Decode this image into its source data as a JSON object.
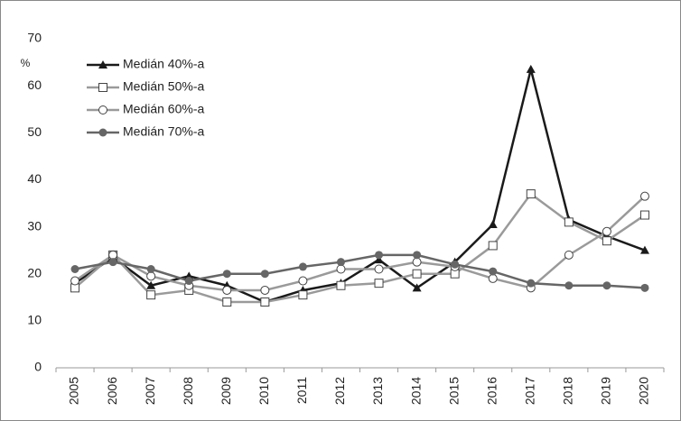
{
  "chart_data": {
    "type": "line",
    "y_unit": "%",
    "categories": [
      "2005",
      "2006",
      "2007",
      "2008",
      "2009",
      "2010",
      "2011",
      "2012",
      "2013",
      "2014",
      "2015",
      "2016",
      "2017",
      "2018",
      "2019",
      "2020"
    ],
    "series": [
      {
        "name": "Medián 40%-a",
        "color": "#1a1a1a",
        "marker": "triangle",
        "values": [
          18,
          23.5,
          17.5,
          19.5,
          17.5,
          14,
          16.5,
          18,
          23,
          17,
          22.5,
          30.5,
          63.5,
          31.5,
          28,
          25
        ]
      },
      {
        "name": "Medián 50%-a",
        "color": "#9a9a9a",
        "marker": "square",
        "values": [
          17,
          24,
          15.5,
          16.5,
          14,
          14,
          15.5,
          17.5,
          18,
          20,
          20,
          26,
          37,
          31,
          27,
          32.5
        ]
      },
      {
        "name": "Medián 60%-a",
        "color": "#9a9a9a",
        "marker": "circle-open",
        "values": [
          18.5,
          24,
          19.5,
          17.5,
          16.5,
          16.5,
          18.5,
          21,
          21,
          22.5,
          21.5,
          19,
          17,
          24,
          29,
          36.5
        ]
      },
      {
        "name": "Medián 70%-a",
        "color": "#666666",
        "marker": "circle",
        "values": [
          21,
          22.5,
          21,
          18.5,
          20,
          20,
          21.5,
          22.5,
          24,
          24,
          22,
          20.5,
          18,
          17.5,
          17.5,
          17
        ]
      }
    ],
    "ylim": [
      0,
      70
    ],
    "yticks": [
      0,
      10,
      20,
      30,
      40,
      50,
      60,
      70
    ],
    "grid": false,
    "legend": "upper-left"
  }
}
